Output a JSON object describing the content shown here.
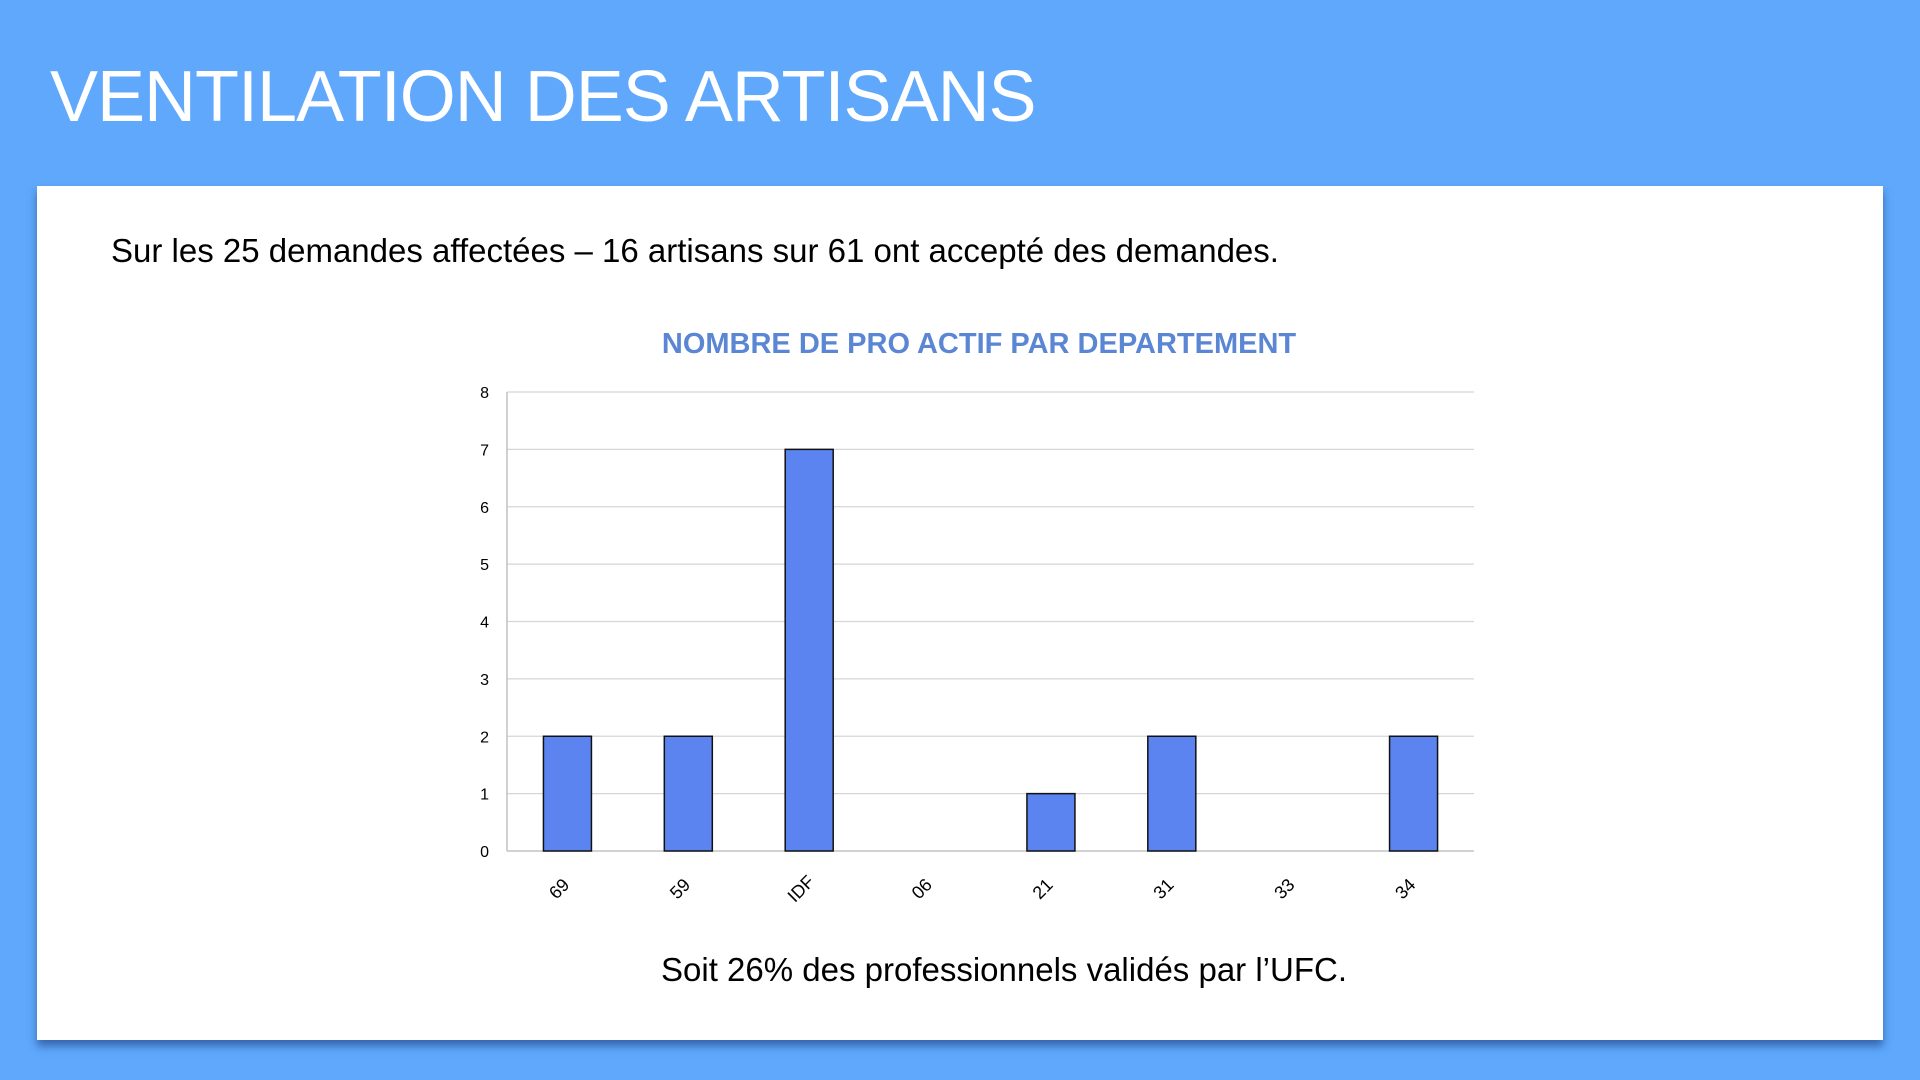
{
  "slide": {
    "title": "VENTILATION DES ARTISANS",
    "intro": "Sur les 25 demandes affectées – 16 artisans sur 61 ont accepté des demandes.",
    "footer": "Soit 26% des professionnels validés par l’UFC."
  },
  "colors": {
    "background": "#5fa8fc",
    "bar_fill": "#5b84f0",
    "title_color": "#5b86d4"
  },
  "chart_data": {
    "type": "bar",
    "title": "NOMBRE DE PRO ACTIF PAR DEPARTEMENT",
    "categories": [
      "69",
      "59",
      "IDF",
      "06",
      "21",
      "31",
      "33",
      "34"
    ],
    "values": [
      2,
      2,
      7,
      0,
      1,
      2,
      0,
      2
    ],
    "ylim": [
      0,
      8
    ],
    "yticks": [
      "0",
      "1",
      "2",
      "3",
      "4",
      "5",
      "6",
      "7",
      "8"
    ],
    "grid": true,
    "legend": "none"
  }
}
